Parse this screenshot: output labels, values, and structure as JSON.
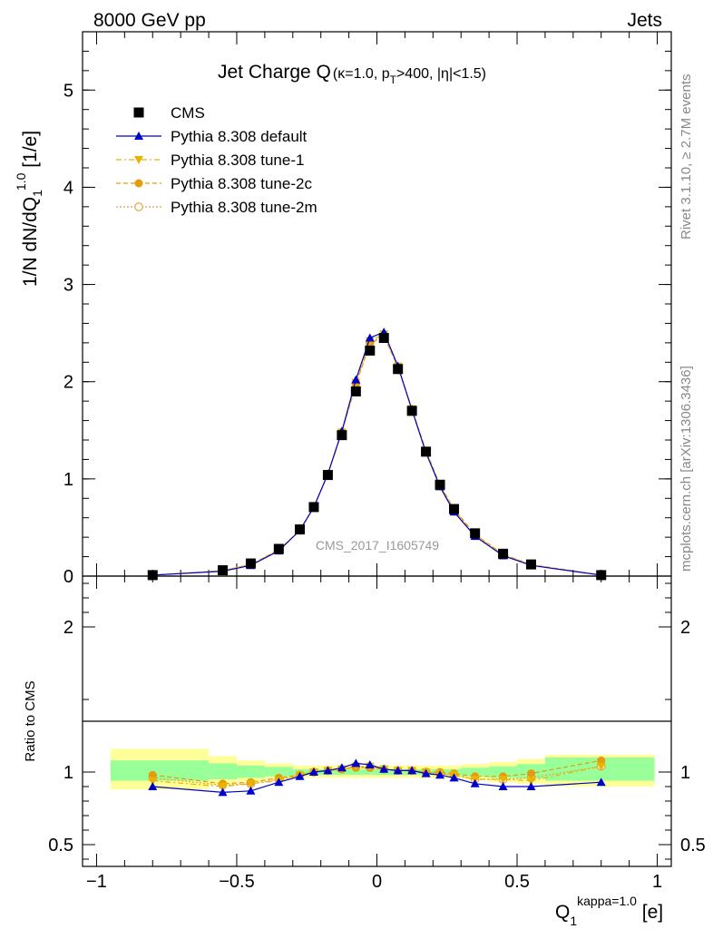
{
  "header": {
    "left": "8000 GeV pp",
    "right": "Jets"
  },
  "side_text": {
    "rivet": "Rivet 3.1.10, ≥ 2.7M events",
    "mcplots": "mcplots.cern.ch [arXiv:1306.3436]"
  },
  "watermark": "CMS_2017_I1605749",
  "chart_data": [
    {
      "type": "scatter",
      "title": "Jet Charge Q (κ=1.0, pT>400, |η|<1.5)",
      "ylabel": "1/N dN/dQ1^1.0 [1/e]",
      "ylim": [
        0,
        5.6
      ],
      "xlim": [
        -1.05,
        1.05
      ],
      "yticks": [
        0,
        1,
        2,
        3,
        4,
        5
      ],
      "legend_position": "top-left",
      "x": [
        -0.8,
        -0.55,
        -0.45,
        -0.35,
        -0.275,
        -0.225,
        -0.175,
        -0.125,
        -0.075,
        -0.025,
        0.025,
        0.075,
        0.125,
        0.175,
        0.225,
        0.275,
        0.35,
        0.45,
        0.55,
        0.8
      ],
      "series": [
        {
          "name": "CMS",
          "color": "#000000",
          "marker": "square",
          "values": [
            0.01,
            0.06,
            0.13,
            0.28,
            0.48,
            0.71,
            1.04,
            1.45,
            1.9,
            2.32,
            2.45,
            2.13,
            1.7,
            1.28,
            0.94,
            0.69,
            0.44,
            0.23,
            0.12,
            0.01
          ]
        },
        {
          "name": "Pythia 8.308 default",
          "color": "#0000cc",
          "marker": "triangle-up",
          "dash": "",
          "values": [
            0.01,
            0.05,
            0.11,
            0.26,
            0.47,
            0.71,
            1.05,
            1.49,
            2.02,
            2.45,
            2.51,
            2.16,
            1.71,
            1.27,
            0.92,
            0.66,
            0.41,
            0.21,
            0.11,
            0.01
          ]
        },
        {
          "name": "Pythia 8.308 tune-1",
          "color": "#e8b400",
          "marker": "triangle-down",
          "dash": "6,3,2,3",
          "values": [
            0.01,
            0.055,
            0.12,
            0.265,
            0.47,
            0.71,
            1.05,
            1.48,
            1.99,
            2.42,
            2.49,
            2.16,
            1.72,
            1.28,
            0.93,
            0.68,
            0.42,
            0.22,
            0.115,
            0.01
          ]
        },
        {
          "name": "Pythia 8.308 tune-2c",
          "color": "#e49b0f",
          "marker": "circle",
          "dash": "5,3",
          "values": [
            0.01,
            0.055,
            0.12,
            0.27,
            0.47,
            0.71,
            1.05,
            1.48,
            1.97,
            2.39,
            2.47,
            2.15,
            1.72,
            1.29,
            0.94,
            0.69,
            0.43,
            0.225,
            0.118,
            0.01
          ]
        },
        {
          "name": "Pythia 8.308 tune-2m",
          "color": "#e8a040",
          "marker": "circle-open",
          "dash": "2,2",
          "values": [
            0.01,
            0.055,
            0.12,
            0.265,
            0.47,
            0.71,
            1.05,
            1.48,
            1.98,
            2.4,
            2.47,
            2.15,
            1.71,
            1.28,
            0.93,
            0.68,
            0.42,
            0.22,
            0.116,
            0.01
          ]
        }
      ]
    },
    {
      "type": "scatter",
      "ylabel": "Ratio to CMS",
      "xlabel": "Q1^kappa=1.0 [e]",
      "ylim": [
        0.35,
        2.35
      ],
      "xlim": [
        -1.05,
        1.05
      ],
      "yticks": [
        0.5,
        1,
        2
      ],
      "xticks": [
        -1,
        -0.5,
        0,
        0.5,
        1
      ],
      "bands": [
        {
          "x0": -0.95,
          "x1": -0.6,
          "yellow": [
            0.88,
            1.16
          ],
          "green": [
            0.94,
            1.08
          ]
        },
        {
          "x0": -0.6,
          "x1": -0.5,
          "yellow": [
            0.91,
            1.11
          ],
          "green": [
            0.95,
            1.06
          ]
        },
        {
          "x0": -0.5,
          "x1": -0.4,
          "yellow": [
            0.93,
            1.08
          ],
          "green": [
            0.96,
            1.045
          ]
        },
        {
          "x0": -0.4,
          "x1": -0.3,
          "yellow": [
            0.95,
            1.06
          ],
          "green": [
            0.97,
            1.035
          ]
        },
        {
          "x0": -0.3,
          "x1": 0.3,
          "yellow": [
            0.96,
            1.045
          ],
          "green": [
            0.98,
            1.02
          ]
        },
        {
          "x0": 0.3,
          "x1": 0.4,
          "yellow": [
            0.95,
            1.055
          ],
          "green": [
            0.97,
            1.03
          ]
        },
        {
          "x0": 0.4,
          "x1": 0.5,
          "yellow": [
            0.93,
            1.07
          ],
          "green": [
            0.96,
            1.04
          ]
        },
        {
          "x0": 0.5,
          "x1": 0.6,
          "yellow": [
            0.92,
            1.09
          ],
          "green": [
            0.955,
            1.055
          ]
        },
        {
          "x0": 0.6,
          "x1": 0.99,
          "yellow": [
            0.9,
            1.12
          ],
          "green": [
            0.94,
            1.1
          ]
        }
      ],
      "series": [
        {
          "name": "Pythia 8.308 default",
          "color": "#0000cc",
          "marker": "triangle-up",
          "dash": "",
          "values": [
            0.9,
            0.86,
            0.87,
            0.93,
            0.97,
            1.0,
            1.01,
            1.03,
            1.06,
            1.05,
            1.02,
            1.01,
            1.01,
            0.99,
            0.98,
            0.96,
            0.92,
            0.9,
            0.9,
            0.93
          ]
        },
        {
          "name": "Pythia 8.308 tune-1",
          "color": "#e8b400",
          "marker": "triangle-down",
          "dash": "6,3,2,3",
          "values": [
            0.94,
            0.9,
            0.92,
            0.94,
            0.98,
            1.0,
            1.01,
            1.02,
            1.04,
            1.04,
            1.02,
            1.01,
            1.01,
            1.0,
            0.99,
            0.98,
            0.95,
            0.95,
            0.94,
            1.04
          ]
        },
        {
          "name": "Pythia 8.308 tune-2c",
          "color": "#e49b0f",
          "marker": "circle",
          "dash": "5,3",
          "values": [
            0.98,
            0.92,
            0.93,
            0.96,
            0.98,
            1.0,
            1.01,
            1.02,
            1.03,
            1.03,
            1.02,
            1.01,
            1.01,
            1.0,
            1.0,
            0.99,
            0.97,
            0.97,
            0.99,
            1.08
          ]
        },
        {
          "name": "Pythia 8.308 tune-2m",
          "color": "#e8a040",
          "marker": "circle-open",
          "dash": "2,2",
          "values": [
            0.96,
            0.91,
            0.92,
            0.95,
            0.98,
            1.0,
            1.01,
            1.02,
            1.04,
            1.03,
            1.02,
            1.01,
            1.01,
            1.0,
            0.99,
            0.98,
            0.95,
            0.95,
            0.96,
            1.04
          ]
        }
      ]
    }
  ]
}
